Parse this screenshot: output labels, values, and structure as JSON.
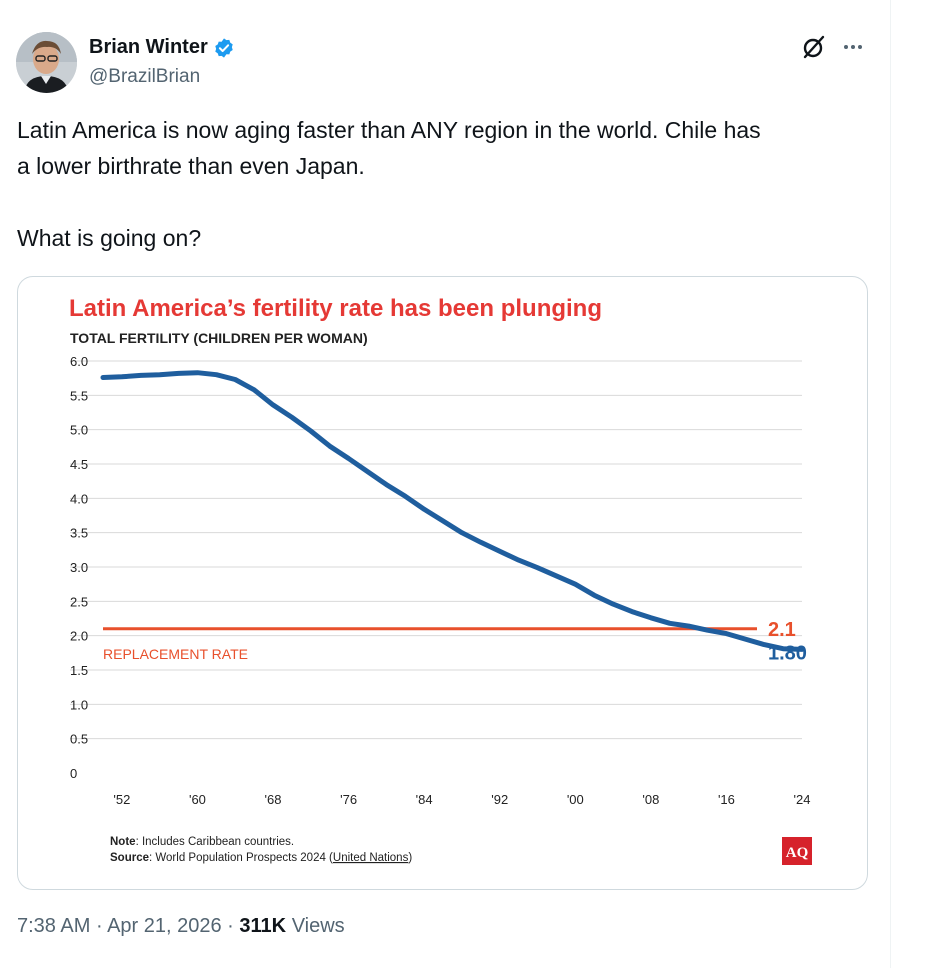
{
  "author": {
    "display_name": "Brian Winter",
    "handle": "@BrazilBrian",
    "verified": true,
    "verified_color": "#1d9bf0"
  },
  "icons": {
    "grok": "grok-icon",
    "more": "more-options-icon"
  },
  "tweet": {
    "text": "Latin America is now aging faster than ANY region in the world. Chile has\na lower birthrate than even Japan.\n\nWhat is going on?"
  },
  "meta": {
    "time": "7:38 AM",
    "date": "Apr 21, 2026",
    "views_count": "311K",
    "views_label": "Views",
    "separator": "·"
  },
  "chart_data": {
    "type": "line",
    "title": "Latin America’s fertility rate has been plunging",
    "ylabel": "TOTAL FERTILITY (CHILDREN PER WOMAN)",
    "ylim": [
      0,
      6.0
    ],
    "y_ticks": [
      "0",
      "0.5",
      "1.0",
      "1.5",
      "2.0",
      "2.5",
      "3.0",
      "3.5",
      "4.0",
      "4.5",
      "5.0",
      "5.5",
      "6.0"
    ],
    "x_ticks": [
      "'52",
      "'60",
      "'68",
      "'76",
      "'84",
      "'92",
      "'00",
      "'08",
      "'16",
      "'24"
    ],
    "x_tick_years": [
      1952,
      1960,
      1968,
      1976,
      1984,
      1992,
      2000,
      2008,
      2016,
      2024
    ],
    "grid": true,
    "series": [
      {
        "color": "#1f5e9e",
        "x": [
          1950,
          1952,
          1954,
          1956,
          1958,
          1960,
          1962,
          1964,
          1966,
          1968,
          1970,
          1972,
          1974,
          1976,
          1978,
          1980,
          1982,
          1984,
          1986,
          1988,
          1990,
          1992,
          1994,
          1996,
          1998,
          2000,
          2002,
          2004,
          2006,
          2008,
          2010,
          2012,
          2014,
          2016,
          2018,
          2020,
          2022,
          2024
        ],
        "y": [
          5.76,
          5.77,
          5.79,
          5.8,
          5.82,
          5.83,
          5.8,
          5.73,
          5.58,
          5.36,
          5.18,
          4.98,
          4.76,
          4.58,
          4.39,
          4.2,
          4.03,
          3.84,
          3.67,
          3.5,
          3.36,
          3.23,
          3.1,
          2.99,
          2.87,
          2.75,
          2.59,
          2.46,
          2.35,
          2.26,
          2.18,
          2.14,
          2.08,
          2.03,
          1.95,
          1.87,
          1.81,
          1.8
        ],
        "end_label": "1.80"
      }
    ],
    "reference_line": {
      "value": 2.1,
      "label": "2.1",
      "name": "REPLACEMENT RATE",
      "color": "#e8502c"
    },
    "title_color": "#e53935",
    "note_label": "Note",
    "note_text": ": Includes Caribbean countries.",
    "source_label": "Source",
    "source_text": ": World Population Prospects 2024 (",
    "source_link": "United Nations",
    "source_close": ")",
    "brand": "AQ",
    "brand_color": "#d6222b"
  }
}
